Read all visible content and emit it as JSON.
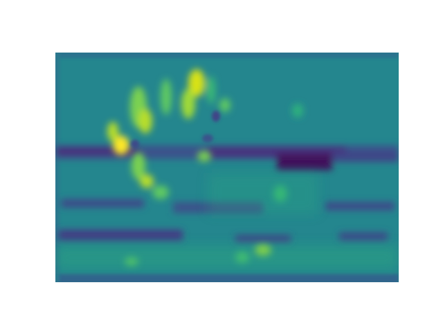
{
  "figure": {
    "background": "#ffffff",
    "colormap": "viridis",
    "palette": {
      "dark_purple": "#440154",
      "indigo": "#3b528b",
      "blue": "#31688e",
      "teal": "#21918c",
      "teal_green": "#2a9d86",
      "green": "#5ec962",
      "lime": "#b8de29",
      "yellow": "#fde725"
    }
  }
}
